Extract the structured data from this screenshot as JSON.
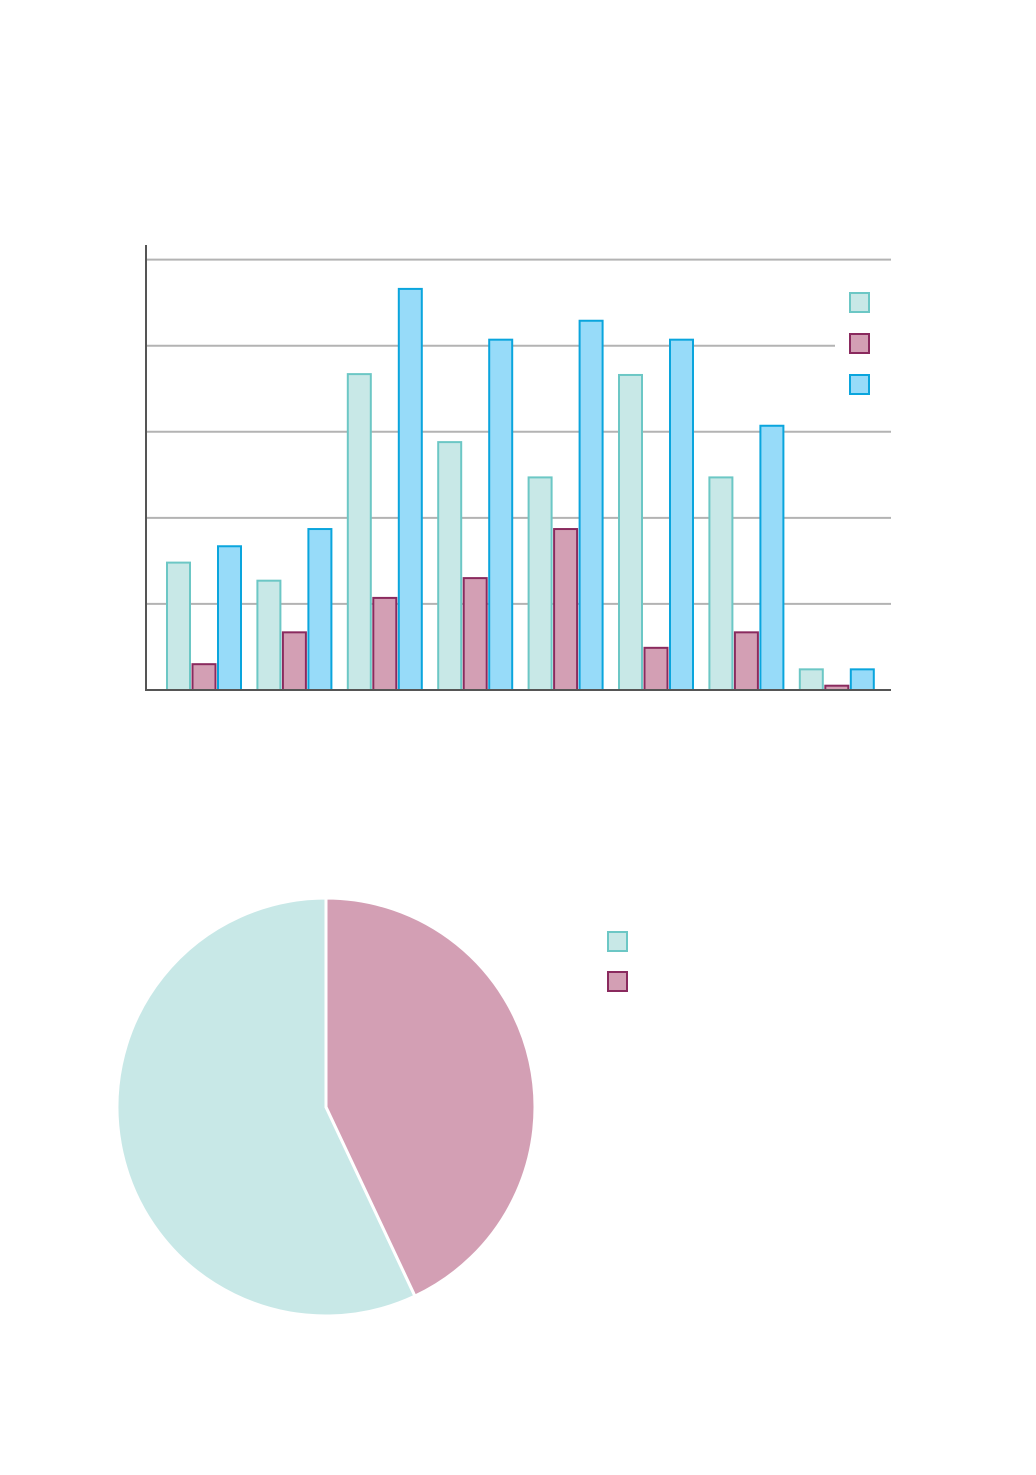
{
  "chart_data": [
    {
      "type": "bar",
      "categories": [
        null,
        null,
        null,
        null,
        null,
        null,
        null,
        null
      ],
      "series": [
        {
          "color": "#c8e8e7",
          "edge": "#6cc7c5",
          "values": [
            1.48,
            1.27,
            3.67,
            2.88,
            2.47,
            3.66,
            2.47,
            0.24
          ]
        },
        {
          "color": "#d39fb4",
          "edge": "#8a2a5e",
          "values": [
            0.3,
            0.67,
            1.07,
            1.3,
            1.87,
            0.49,
            0.67,
            0.05
          ]
        },
        {
          "color": "#97dbf9",
          "edge": "#0aa5dd",
          "values": [
            1.67,
            1.87,
            4.66,
            4.07,
            4.29,
            4.07,
            3.07,
            0.24
          ]
        }
      ],
      "ylim": [
        0,
        5.17
      ],
      "yticks": [
        0,
        1,
        2,
        3,
        4,
        5
      ],
      "grid": true,
      "legend": "upper right"
    },
    {
      "type": "pie",
      "series": [
        {
          "color": "#c8e8e7",
          "edge": "#6cc7c5",
          "values": [
            57
          ]
        },
        {
          "color": "#d39fb4",
          "edge": "#8a2a5e",
          "values": [
            43
          ]
        }
      ]
    }
  ]
}
